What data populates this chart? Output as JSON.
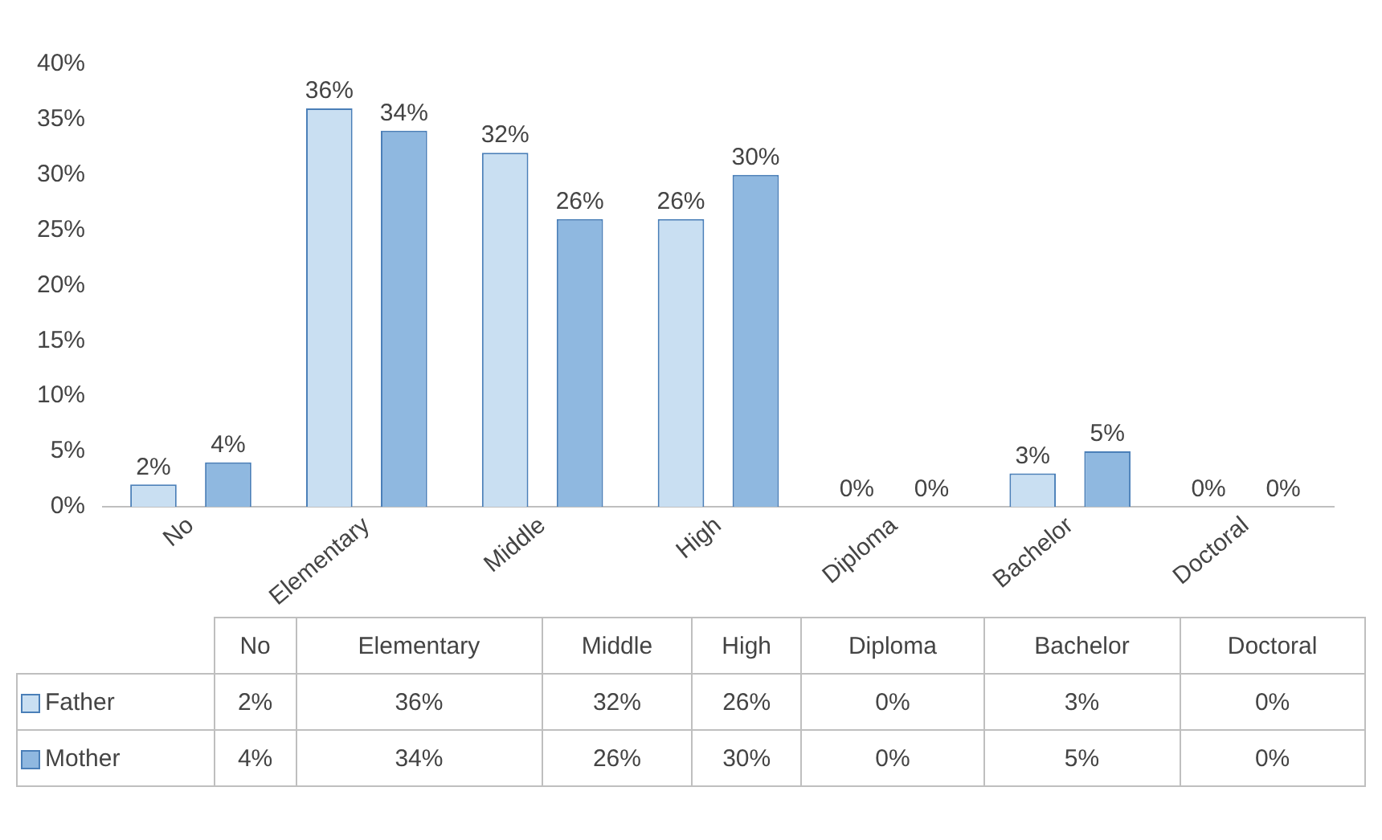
{
  "chart_data": {
    "type": "bar",
    "categories": [
      "No",
      "Elementary",
      "Middle",
      "High",
      "Diploma",
      "Bachelor",
      "Doctoral"
    ],
    "series": [
      {
        "name": "Father",
        "color": "#c9dff2",
        "values": [
          2,
          36,
          32,
          26,
          0,
          3,
          0
        ],
        "value_labels": [
          "2%",
          "36%",
          "32%",
          "26%",
          "0%",
          "3%",
          "0%"
        ]
      },
      {
        "name": "Mother",
        "color": "#8fb8e0",
        "values": [
          4,
          34,
          26,
          30,
          0,
          5,
          0
        ],
        "value_labels": [
          "4%",
          "34%",
          "26%",
          "30%",
          "0%",
          "5%",
          "0%"
        ]
      }
    ],
    "ylim": [
      0,
      40
    ],
    "yticks": [
      {
        "value": 0,
        "label": "0%"
      },
      {
        "value": 5,
        "label": "5%"
      },
      {
        "value": 10,
        "label": "10%"
      },
      {
        "value": 15,
        "label": "15%"
      },
      {
        "value": 20,
        "label": "20%"
      },
      {
        "value": 25,
        "label": "25%"
      },
      {
        "value": 30,
        "label": "30%"
      },
      {
        "value": 35,
        "label": "35%"
      },
      {
        "value": 40,
        "label": "40%"
      }
    ],
    "grid": false,
    "legend": "bottom"
  }
}
